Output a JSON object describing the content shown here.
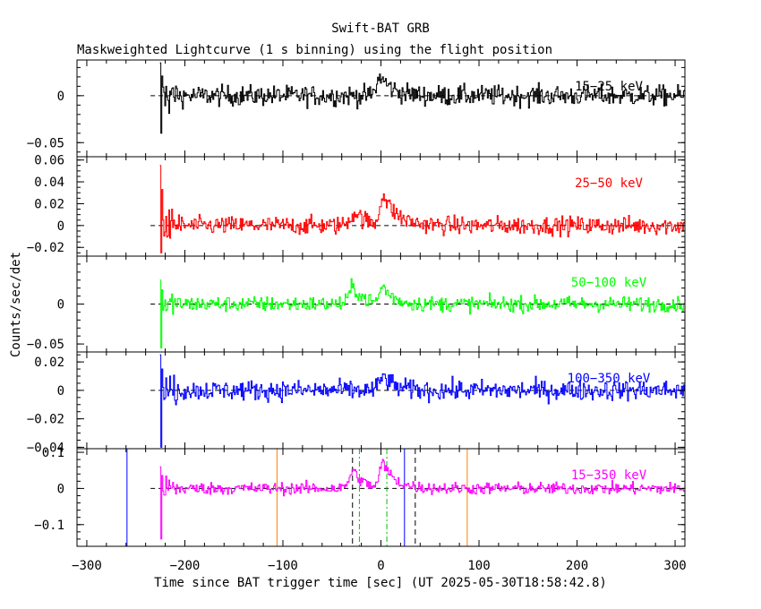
{
  "chart_data": {
    "type": "line",
    "title": "Swift-BAT GRB",
    "subtitle": "Maskweighted Lightcurve (1 s binning) using the flight position",
    "xlabel": "Time since BAT trigger time [sec] (UT 2025-05-30T18:58:42.8)",
    "ylabel": "Counts/sec/det",
    "xlim": [
      -310,
      310
    ],
    "xticks_major": [
      -300,
      -200,
      -100,
      0,
      100,
      200,
      300
    ],
    "x_tick_labels": [
      "−300",
      "−200",
      "−100",
      "0",
      "100",
      "200",
      "300"
    ],
    "data_start": -225,
    "data_end": 310,
    "panels": [
      {
        "name": "15-25 keV",
        "label": "15−25 keV",
        "color": "#000000",
        "ylim": [
          -0.065,
          0.038
        ],
        "ticks": [
          0,
          -0.05
        ],
        "tick_labels": [
          "0",
          "−0.05"
        ],
        "minor_step": 0.01,
        "noise": 0.0085,
        "early_spike": [
          0.035,
          -0.04
        ],
        "bumps": [
          {
            "t": 0,
            "amp": 0.02,
            "w": 4,
            "decay": 12
          }
        ]
      },
      {
        "name": "25-50 keV",
        "label": "25−50 keV",
        "color": "#ff0000",
        "ylim": [
          -0.028,
          0.063
        ],
        "ticks": [
          0.06,
          0.04,
          0.02,
          0,
          -0.02
        ],
        "tick_labels": [
          "0.06",
          "0.04",
          "0.02",
          "0",
          "−0.02"
        ],
        "minor_step": 0.005,
        "noise": 0.0065,
        "early_spike": [
          0.055,
          -0.025
        ],
        "bumps": [
          {
            "t": -25,
            "amp": 0.012,
            "w": 6,
            "decay": 10
          },
          {
            "t": 2,
            "amp": 0.028,
            "w": 3,
            "decay": 14
          }
        ]
      },
      {
        "name": "50-100 keV",
        "label": "50−100 keV",
        "color": "#00ff00",
        "ylim": [
          -0.06,
          0.06
        ],
        "ticks": [
          0,
          -0.05
        ],
        "tick_labels": [
          "0",
          "−0.05"
        ],
        "minor_step": 0.01,
        "noise": 0.0075,
        "early_spike": [
          0.03,
          -0.055
        ],
        "bumps": [
          {
            "t": -28,
            "amp": 0.022,
            "w": 4,
            "decay": 10
          },
          {
            "t": 2,
            "amp": 0.022,
            "w": 3,
            "decay": 10
          }
        ]
      },
      {
        "name": "100-350 keV",
        "label": "100−350 keV",
        "color": "#0000ff",
        "ylim": [
          -0.041,
          0.027
        ],
        "ticks": [
          0.02,
          0,
          -0.02,
          -0.04
        ],
        "tick_labels": [
          "0.02",
          "0",
          "−0.02",
          "−0.04"
        ],
        "minor_step": 0.005,
        "noise": 0.0055,
        "early_spike": [
          0.025,
          -0.04
        ],
        "bumps": [
          {
            "t": 3,
            "amp": 0.01,
            "w": 4,
            "decay": 10
          }
        ]
      },
      {
        "name": "15-350 keV",
        "label": "15−350 keV",
        "color": "#ff00ff",
        "ylim": [
          -0.16,
          0.11
        ],
        "ticks": [
          0.1,
          0,
          -0.1
        ],
        "tick_labels": [
          "0.1",
          "0",
          "−0.1"
        ],
        "minor_step": 0.02,
        "noise": 0.013,
        "early_spike": [
          0.06,
          -0.14
        ],
        "bumps": [
          {
            "t": -28,
            "amp": 0.05,
            "w": 4,
            "decay": 10
          },
          {
            "t": 2,
            "amp": 0.07,
            "w": 3,
            "decay": 12
          }
        ]
      }
    ],
    "vertical_markers": [
      {
        "name": "blue-marker",
        "x": -259,
        "color": "#0000ff",
        "style": "solid"
      },
      {
        "name": "blue-marker",
        "x": 24,
        "color": "#0000ff",
        "style": "solid"
      },
      {
        "name": "orange-marker",
        "x": -106,
        "color": "#ff8000",
        "style": "solid"
      },
      {
        "name": "orange-marker",
        "x": 88,
        "color": "#ff8000",
        "style": "solid"
      },
      {
        "name": "black-dashed-marker",
        "x": -29,
        "color": "#000000",
        "style": "dashed"
      },
      {
        "name": "black-dashed-marker",
        "x": 35,
        "color": "#000000",
        "style": "dashed"
      },
      {
        "name": "green-dashdot-marker",
        "x": -22,
        "color": "#00c000",
        "style": "dashdot"
      },
      {
        "name": "green-dashdot-marker",
        "x": 6,
        "color": "#00c000",
        "style": "dashdot"
      }
    ]
  }
}
